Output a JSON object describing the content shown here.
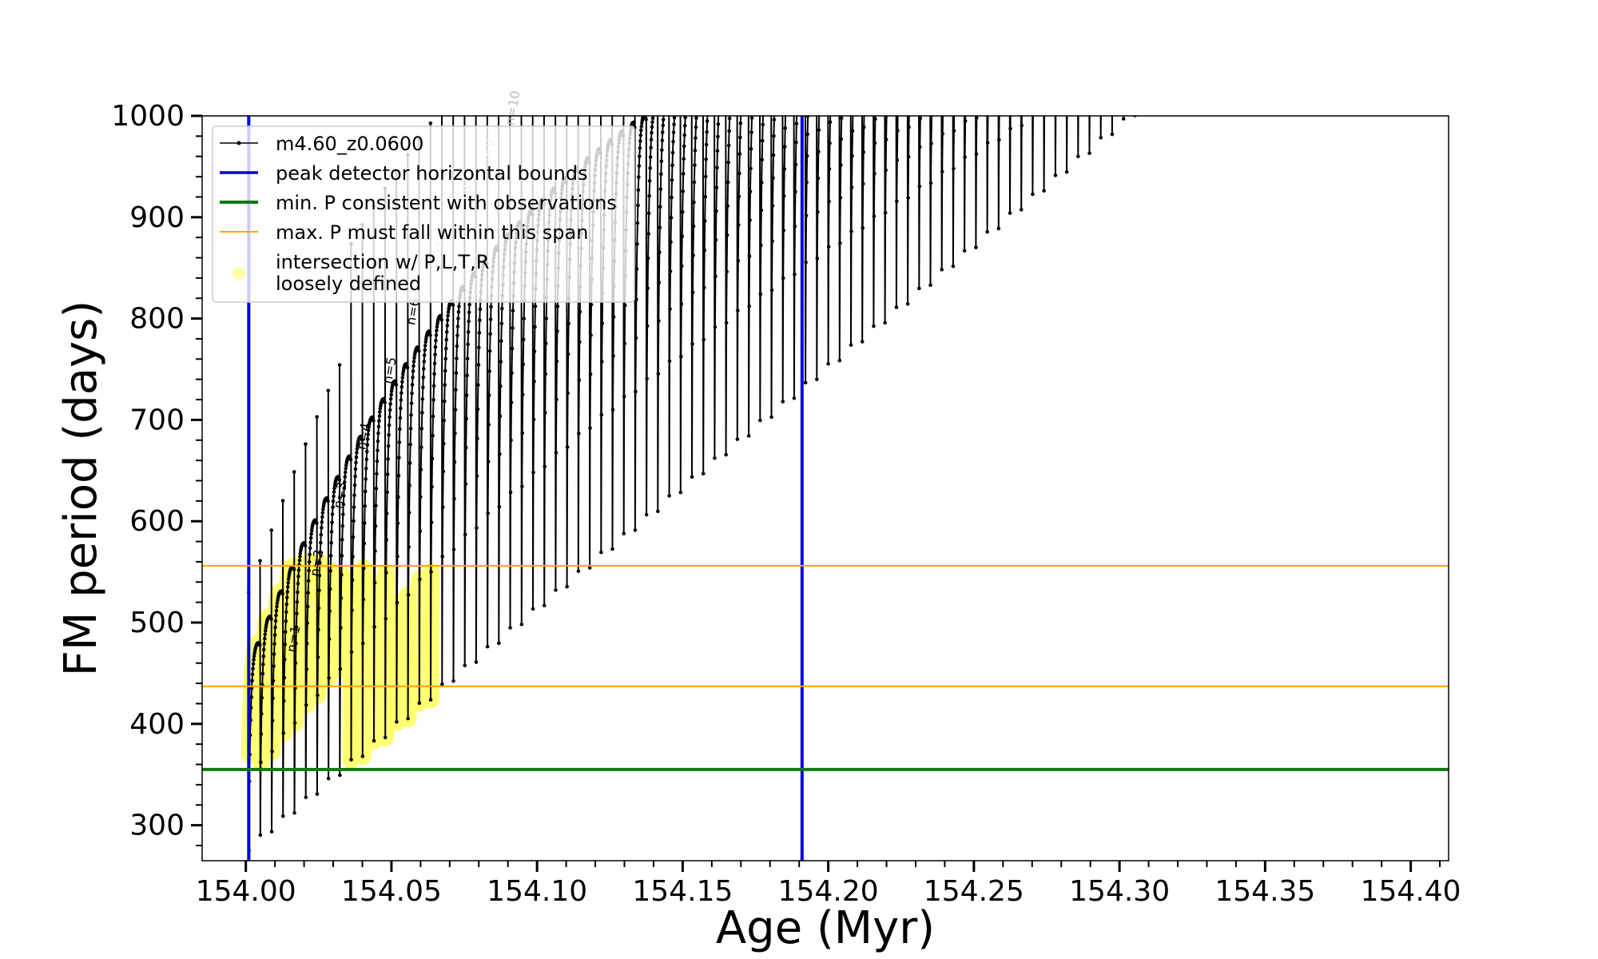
{
  "chart_data": {
    "type": "line",
    "xlabel": "Age (Myr)",
    "ylabel": "FM period (days)",
    "xlim": [
      153.985,
      154.413
    ],
    "ylim": [
      265,
      1000
    ],
    "xticks": [
      154.0,
      154.05,
      154.1,
      154.15,
      154.2,
      154.25,
      154.3,
      154.35,
      154.4
    ],
    "xtick_labels": [
      "154.00",
      "154.05",
      "154.10",
      "154.15",
      "154.20",
      "154.25",
      "154.30",
      "154.35",
      "154.40"
    ],
    "yticks": [
      300,
      400,
      500,
      600,
      700,
      800,
      900,
      1000
    ],
    "ytick_labels": [
      "300",
      "400",
      "500",
      "600",
      "700",
      "800",
      "900",
      "1000"
    ],
    "legend": {
      "placement": "upper-left",
      "entries": [
        {
          "label": "m4.60_z0.0600",
          "style": "black-line-dots"
        },
        {
          "label": "peak detector horizontal bounds",
          "style": "blue-line"
        },
        {
          "label": "min. P consistent with observations",
          "style": "green-line"
        },
        {
          "label": "max. P must fall within this span",
          "style": "orange-line"
        },
        {
          "label": "intersection w/ P,L,T,R",
          "label2": "loosely defined",
          "style": "yellow-marker"
        }
      ]
    },
    "reference_lines": {
      "vertical_bounds": [
        154.001,
        154.191
      ],
      "min_period": 355,
      "max_period_span": [
        437,
        556
      ]
    },
    "series_name": "m4.60_z0.0600",
    "pulse_count": 84,
    "pulse_start_age": 154.001,
    "pulse_spacing": 0.0039,
    "first_peak_period": 480,
    "peak_growth_per_pulse": 26,
    "peak_growth_decay": 0.965,
    "first_min_period": 275,
    "min_period_growth": 9.3,
    "n_labels": [
      {
        "text": "n=1",
        "x": 154.017,
        "y": 470
      },
      {
        "text": "n=2",
        "x": 154.025,
        "y": 545
      },
      {
        "text": "n=3",
        "x": 154.033,
        "y": 612
      },
      {
        "text": "n=4",
        "x": 154.041,
        "y": 670
      },
      {
        "text": "n=5",
        "x": 154.05,
        "y": 735
      },
      {
        "text": "n=6",
        "x": 154.058,
        "y": 793
      },
      {
        "text": "n=7",
        "x": 154.067,
        "y": 850
      },
      {
        "text": "n=8",
        "x": 154.076,
        "y": 905
      },
      {
        "text": "n=9",
        "x": 154.084,
        "y": 950
      },
      {
        "text": "n=10",
        "x": 154.092,
        "y": 990
      }
    ],
    "colors": {
      "series": "#000000",
      "bounds": "#0000dd",
      "min_line": "#117711",
      "max_span": "#ffa500",
      "intersection": "#ffff00"
    },
    "grid": false
  }
}
